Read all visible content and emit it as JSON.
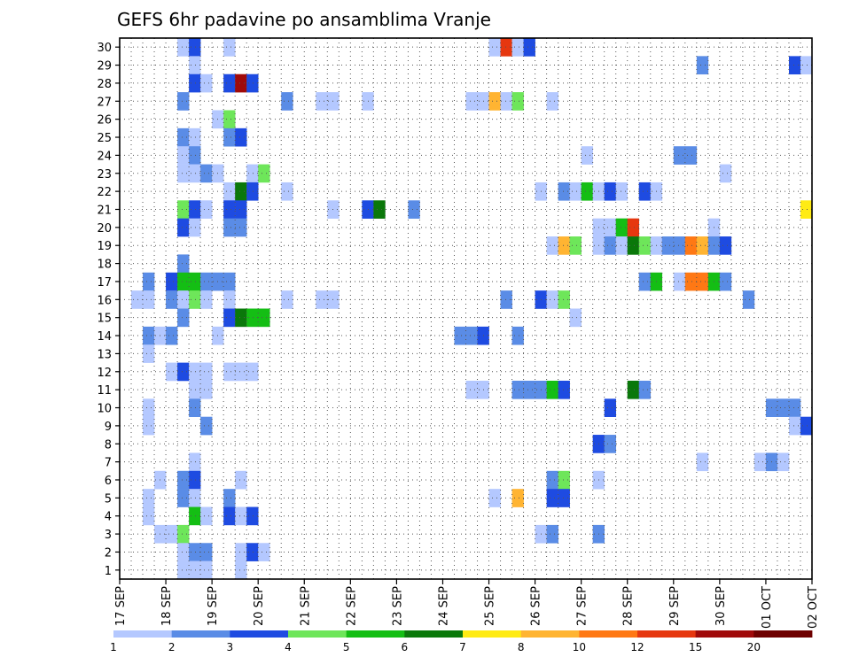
{
  "chart_data": {
    "type": "heatmap",
    "title": "GEFS 6hr padavine po ansamblima Vranje",
    "x_tick_labels": [
      "17 SEP",
      "18 SEP",
      "19 SEP",
      "20 SEP",
      "21 SEP",
      "22 SEP",
      "23 SEP",
      "24 SEP",
      "25 SEP",
      "26 SEP",
      "27 SEP",
      "28 SEP",
      "29 SEP",
      "30 SEP",
      "01 OCT",
      "02 OCT"
    ],
    "y_tick_labels": [
      "1",
      "2",
      "3",
      "4",
      "5",
      "6",
      "7",
      "8",
      "9",
      "10",
      "11",
      "12",
      "13",
      "14",
      "15",
      "16",
      "17",
      "18",
      "19",
      "20",
      "21",
      "22",
      "23",
      "24",
      "25",
      "26",
      "27",
      "28",
      "29",
      "30"
    ],
    "xlim": [
      0,
      60
    ],
    "ylim": [
      0.5,
      30.5
    ],
    "grid": true,
    "legend": {
      "placement": "bottom",
      "labels": [
        "1",
        "2",
        "3",
        "4",
        "5",
        "6",
        "7",
        "8",
        "10",
        "12",
        "15",
        "20"
      ],
      "colors": [
        "#b4c8ff",
        "#5a8ce6",
        "#1e4be1",
        "#6ee65a",
        "#14be14",
        "#0a780a",
        "#ffeb14",
        "#ffb432",
        "#ff7814",
        "#e6370f",
        "#a00a0a",
        "#6e0000"
      ]
    },
    "levels": [
      "1-2",
      "2-3",
      "3-4",
      "4-5",
      "5-6",
      "6-7",
      "7-8",
      "8-10",
      "10-12",
      "12-15",
      "15-20",
      "20+"
    ],
    "cells": [
      [
        5,
        30,
        1
      ],
      [
        6,
        30,
        3
      ],
      [
        9,
        30,
        1
      ],
      [
        32,
        30,
        1
      ],
      [
        33,
        30,
        10
      ],
      [
        34,
        30,
        1
      ],
      [
        35,
        30,
        3
      ],
      [
        6,
        29,
        1
      ],
      [
        50,
        29,
        2
      ],
      [
        58,
        29,
        3
      ],
      [
        59,
        29,
        1
      ],
      [
        6,
        28,
        3
      ],
      [
        7,
        28,
        1
      ],
      [
        9,
        28,
        3
      ],
      [
        10,
        28,
        11
      ],
      [
        11,
        28,
        3
      ],
      [
        5,
        27,
        2
      ],
      [
        14,
        27,
        2
      ],
      [
        17,
        27,
        1
      ],
      [
        18,
        27,
        1
      ],
      [
        21,
        27,
        1
      ],
      [
        30,
        27,
        1
      ],
      [
        31,
        27,
        1
      ],
      [
        32,
        27,
        8
      ],
      [
        33,
        27,
        1
      ],
      [
        34,
        27,
        4
      ],
      [
        37,
        27,
        1
      ],
      [
        8,
        26,
        1
      ],
      [
        9,
        26,
        4
      ],
      [
        5,
        25,
        2
      ],
      [
        6,
        25,
        1
      ],
      [
        9,
        25,
        2
      ],
      [
        10,
        25,
        3
      ],
      [
        5,
        24,
        1
      ],
      [
        6,
        24,
        2
      ],
      [
        40,
        24,
        1
      ],
      [
        48,
        24,
        2
      ],
      [
        49,
        24,
        2
      ],
      [
        5,
        23,
        1
      ],
      [
        6,
        23,
        1
      ],
      [
        7,
        23,
        2
      ],
      [
        8,
        23,
        1
      ],
      [
        11,
        23,
        1
      ],
      [
        12,
        23,
        4
      ],
      [
        52,
        23,
        1
      ],
      [
        9,
        22,
        1
      ],
      [
        10,
        22,
        6
      ],
      [
        11,
        22,
        3
      ],
      [
        14,
        22,
        1
      ],
      [
        36,
        22,
        1
      ],
      [
        38,
        22,
        2
      ],
      [
        39,
        22,
        1
      ],
      [
        40,
        22,
        5
      ],
      [
        41,
        22,
        1
      ],
      [
        42,
        22,
        3
      ],
      [
        43,
        22,
        1
      ],
      [
        45,
        22,
        3
      ],
      [
        46,
        22,
        1
      ],
      [
        5,
        21,
        4
      ],
      [
        6,
        21,
        3
      ],
      [
        7,
        21,
        1
      ],
      [
        9,
        21,
        3
      ],
      [
        10,
        21,
        3
      ],
      [
        18,
        21,
        1
      ],
      [
        21,
        21,
        3
      ],
      [
        22,
        21,
        6
      ],
      [
        25,
        21,
        2
      ],
      [
        59,
        21,
        7
      ],
      [
        5,
        20,
        3
      ],
      [
        6,
        20,
        1
      ],
      [
        9,
        20,
        2
      ],
      [
        10,
        20,
        2
      ],
      [
        41,
        20,
        1
      ],
      [
        42,
        20,
        1
      ],
      [
        43,
        20,
        5
      ],
      [
        44,
        20,
        10
      ],
      [
        51,
        20,
        1
      ],
      [
        37,
        19,
        1
      ],
      [
        38,
        19,
        8
      ],
      [
        39,
        19,
        4
      ],
      [
        41,
        19,
        1
      ],
      [
        42,
        19,
        2
      ],
      [
        43,
        19,
        1
      ],
      [
        44,
        19,
        6
      ],
      [
        45,
        19,
        4
      ],
      [
        46,
        19,
        1
      ],
      [
        47,
        19,
        2
      ],
      [
        48,
        19,
        2
      ],
      [
        49,
        19,
        9
      ],
      [
        50,
        19,
        8
      ],
      [
        51,
        19,
        2
      ],
      [
        52,
        19,
        3
      ],
      [
        5,
        18,
        2
      ],
      [
        2,
        17,
        2
      ],
      [
        4,
        17,
        3
      ],
      [
        5,
        17,
        5
      ],
      [
        6,
        17,
        5
      ],
      [
        7,
        17,
        2
      ],
      [
        8,
        17,
        2
      ],
      [
        9,
        17,
        2
      ],
      [
        45,
        17,
        2
      ],
      [
        46,
        17,
        5
      ],
      [
        48,
        17,
        1
      ],
      [
        49,
        17,
        9
      ],
      [
        50,
        17,
        9
      ],
      [
        51,
        17,
        5
      ],
      [
        52,
        17,
        2
      ],
      [
        1,
        16,
        1
      ],
      [
        2,
        16,
        1
      ],
      [
        4,
        16,
        2
      ],
      [
        5,
        16,
        1
      ],
      [
        6,
        16,
        4
      ],
      [
        7,
        16,
        1
      ],
      [
        9,
        16,
        1
      ],
      [
        14,
        16,
        1
      ],
      [
        17,
        16,
        1
      ],
      [
        18,
        16,
        1
      ],
      [
        33,
        16,
        2
      ],
      [
        36,
        16,
        3
      ],
      [
        37,
        16,
        1
      ],
      [
        38,
        16,
        4
      ],
      [
        54,
        16,
        2
      ],
      [
        5,
        15,
        2
      ],
      [
        9,
        15,
        3
      ],
      [
        10,
        15,
        6
      ],
      [
        11,
        15,
        5
      ],
      [
        12,
        15,
        5
      ],
      [
        39,
        15,
        1
      ],
      [
        2,
        14,
        2
      ],
      [
        3,
        14,
        1
      ],
      [
        4,
        14,
        2
      ],
      [
        8,
        14,
        1
      ],
      [
        29,
        14,
        2
      ],
      [
        30,
        14,
        2
      ],
      [
        31,
        14,
        3
      ],
      [
        34,
        14,
        2
      ],
      [
        2,
        13,
        1
      ],
      [
        4,
        12,
        1
      ],
      [
        5,
        12,
        3
      ],
      [
        6,
        12,
        1
      ],
      [
        7,
        12,
        1
      ],
      [
        9,
        12,
        1
      ],
      [
        10,
        12,
        1
      ],
      [
        11,
        12,
        1
      ],
      [
        6,
        11,
        1
      ],
      [
        7,
        11,
        1
      ],
      [
        30,
        11,
        1
      ],
      [
        31,
        11,
        1
      ],
      [
        34,
        11,
        2
      ],
      [
        35,
        11,
        2
      ],
      [
        36,
        11,
        2
      ],
      [
        37,
        11,
        5
      ],
      [
        38,
        11,
        3
      ],
      [
        44,
        11,
        6
      ],
      [
        45,
        11,
        2
      ],
      [
        2,
        10,
        1
      ],
      [
        6,
        10,
        2
      ],
      [
        42,
        10,
        3
      ],
      [
        56,
        10,
        2
      ],
      [
        57,
        10,
        2
      ],
      [
        58,
        10,
        2
      ],
      [
        2,
        9,
        1
      ],
      [
        7,
        9,
        2
      ],
      [
        58,
        9,
        1
      ],
      [
        59,
        9,
        3
      ],
      [
        41,
        8,
        3
      ],
      [
        42,
        8,
        2
      ],
      [
        6,
        7,
        1
      ],
      [
        50,
        7,
        1
      ],
      [
        55,
        7,
        1
      ],
      [
        56,
        7,
        2
      ],
      [
        57,
        7,
        1
      ],
      [
        3,
        6,
        1
      ],
      [
        5,
        6,
        2
      ],
      [
        6,
        6,
        3
      ],
      [
        10,
        6,
        1
      ],
      [
        37,
        6,
        2
      ],
      [
        38,
        6,
        4
      ],
      [
        41,
        6,
        1
      ],
      [
        2,
        5,
        1
      ],
      [
        5,
        5,
        2
      ],
      [
        6,
        5,
        1
      ],
      [
        9,
        5,
        2
      ],
      [
        32,
        5,
        1
      ],
      [
        34,
        5,
        8
      ],
      [
        37,
        5,
        3
      ],
      [
        38,
        5,
        3
      ],
      [
        2,
        4,
        1
      ],
      [
        6,
        4,
        5
      ],
      [
        7,
        4,
        1
      ],
      [
        9,
        4,
        3
      ],
      [
        10,
        4,
        1
      ],
      [
        11,
        4,
        3
      ],
      [
        3,
        3,
        1
      ],
      [
        4,
        3,
        1
      ],
      [
        5,
        3,
        4
      ],
      [
        36,
        3,
        1
      ],
      [
        37,
        3,
        2
      ],
      [
        41,
        3,
        2
      ],
      [
        5,
        2,
        1
      ],
      [
        6,
        2,
        2
      ],
      [
        7,
        2,
        2
      ],
      [
        10,
        2,
        1
      ],
      [
        11,
        2,
        3
      ],
      [
        12,
        2,
        1
      ],
      [
        5,
        1,
        1
      ],
      [
        6,
        1,
        1
      ],
      [
        7,
        1,
        1
      ],
      [
        10,
        1,
        1
      ]
    ]
  }
}
